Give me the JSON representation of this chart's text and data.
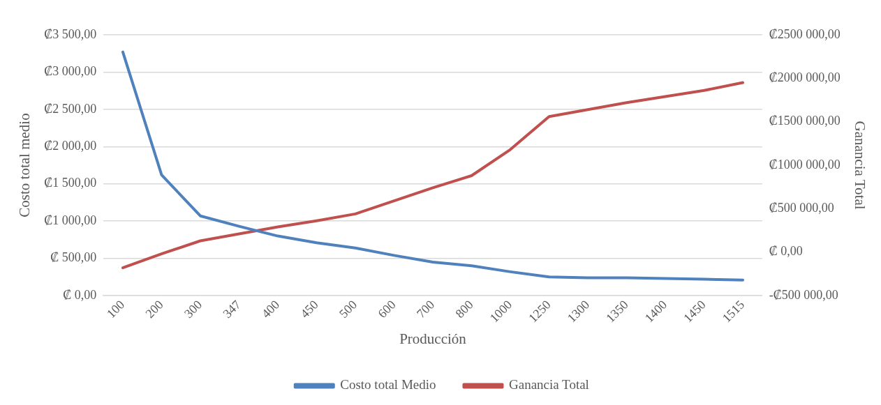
{
  "chart_data": {
    "type": "line",
    "xlabel": "Producción",
    "ylabel": "Costo total medio",
    "y2label": "Ganancia Total",
    "categories": [
      "100",
      "200",
      "300",
      "347",
      "400",
      "450",
      "500",
      "600",
      "700",
      "800",
      "1000",
      "1250",
      "1300",
      "1350",
      "1400",
      "1450",
      "1515"
    ],
    "series": [
      {
        "name": "Costo total Medio",
        "color": "#4f81bd",
        "values": [
          3270,
          1620,
          1070,
          930,
          800,
          710,
          640,
          540,
          450,
          400,
          320,
          250,
          240,
          240,
          230,
          220,
          210
        ]
      },
      {
        "name": "Ganancia Total",
        "color": "#c0504d",
        "axis": "y2",
        "values": [
          -180000,
          -20000,
          130000,
          210000,
          290000,
          360000,
          440000,
          590000,
          740000,
          880000,
          1180000,
          1560000,
          1640000,
          1720000,
          1790000,
          1860000,
          1950000
        ]
      }
    ],
    "ylim": [
      0,
      3500
    ],
    "yticks": [
      {
        "value": 0,
        "label": "₡ 0,00"
      },
      {
        "value": 500,
        "label": "₡ 500,00"
      },
      {
        "value": 1000,
        "label": "₡1 000,00"
      },
      {
        "value": 1500,
        "label": "₡1 500,00"
      },
      {
        "value": 2000,
        "label": "₡2 000,00"
      },
      {
        "value": 2500,
        "label": "₡2 500,00"
      },
      {
        "value": 3000,
        "label": "₡3 000,00"
      },
      {
        "value": 3500,
        "label": "₡3 500,00"
      }
    ],
    "y2lim": [
      -500000,
      2500000
    ],
    "y2ticks": [
      {
        "value": -500000,
        "label": "-₡500 000,00"
      },
      {
        "value": 0,
        "label": "₡ 0,00"
      },
      {
        "value": 500000,
        "label": "₡500 000,00"
      },
      {
        "value": 1000000,
        "label": "₡1000 000,00"
      },
      {
        "value": 1500000,
        "label": "₡1500 000,00"
      },
      {
        "value": 2000000,
        "label": "₡2000 000,00"
      },
      {
        "value": 2500000,
        "label": "₡2500 000,00"
      }
    ],
    "grid": "y",
    "legend": "bottom",
    "marker": "none",
    "line_style": "solid"
  }
}
